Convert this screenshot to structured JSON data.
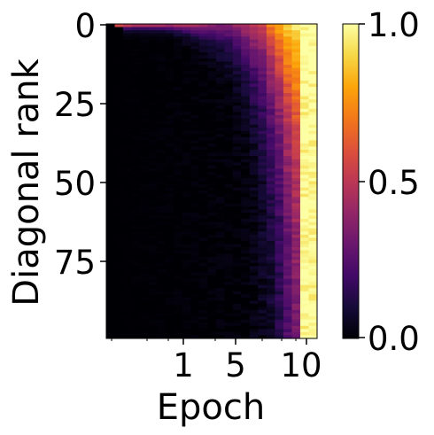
{
  "chart_data": {
    "type": "heatmap",
    "xlabel": "Epoch",
    "ylabel": "Diagonal rank",
    "colormap": "inferno",
    "x_scale": "log",
    "x_ticks": [
      "1",
      "5",
      "10"
    ],
    "y_ticks": [
      "0",
      "25",
      "50",
      "75"
    ],
    "y_range": [
      0,
      99
    ],
    "colorbar": {
      "min": 0.0,
      "max": 1.0,
      "ticks": [
        "0.0",
        "0.5",
        "1.0"
      ]
    },
    "columns": 25,
    "rows": 100,
    "row_brightness_decay": 0.5,
    "column_profile": {
      "note": "approximate value at rank 0 per epoch column, left to right",
      "top_values": [
        0.0,
        0.55,
        0.5,
        0.45,
        0.45,
        0.45,
        0.45,
        0.42,
        0.45,
        0.45,
        0.45,
        0.4,
        0.35,
        0.35,
        0.35,
        0.4,
        0.45,
        0.5,
        0.55,
        0.7,
        0.8,
        0.9,
        0.95,
        0.98,
        1.0
      ],
      "deep_floor": [
        0.0,
        0.0,
        0.0,
        0.0,
        0.0,
        0.0,
        0.0,
        0.0,
        0.0,
        0.0,
        0.0,
        0.0,
        0.0,
        0.0,
        0.0,
        0.0,
        0.0,
        0.02,
        0.04,
        0.06,
        0.1,
        0.18,
        0.25,
        0.98,
        0.98
      ]
    }
  }
}
